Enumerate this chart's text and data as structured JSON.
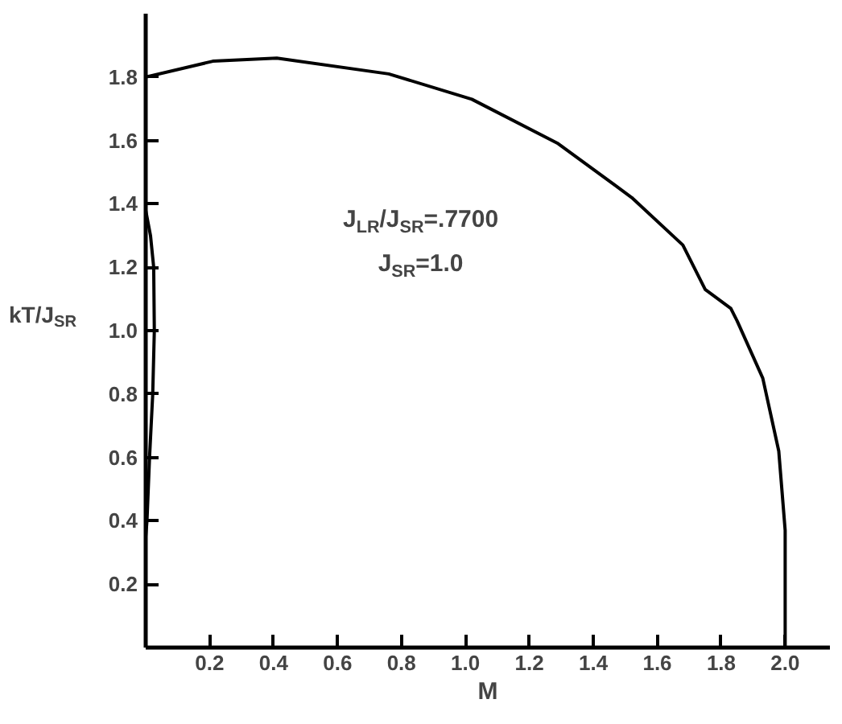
{
  "chart_data": {
    "type": "line",
    "xlabel": "M",
    "ylabel": "kT/J$_{SR}$",
    "annotations": [
      "J$_{LR}$/J$_{SR}$=.7700",
      "J$_{SR}$=1.0"
    ],
    "series": [
      {
        "color": "#000000",
        "x": [
          0,
          0.21,
          0.41,
          0.76,
          1.02,
          1.29,
          1.52,
          1.68,
          1.75,
          1.83,
          1.85,
          1.93,
          1.98,
          2.0,
          2.0
        ],
        "values": [
          1.8,
          1.85,
          1.86,
          1.81,
          1.73,
          1.59,
          1.42,
          1.27,
          1.13,
          1.07,
          1.03,
          0.85,
          0.62,
          0.37,
          0
        ]
      },
      {
        "color": "#000000",
        "x": [
          0,
          0.015,
          0.025,
          0.027,
          0.022,
          0.012,
          0.004,
          0
        ],
        "values": [
          1.38,
          1.3,
          1.2,
          1.0,
          0.8,
          0.6,
          0.4,
          0.35
        ]
      }
    ],
    "xlim": [
      0,
      2.14
    ],
    "ylim": [
      0,
      2.0
    ],
    "xticks": [
      0.2,
      0.4,
      0.6,
      0.8,
      {
        "value": 1.0,
        "label": "1.0"
      },
      1.2,
      1.4,
      1.6,
      1.8,
      {
        "value": 2.0,
        "label": "2.0"
      }
    ],
    "yticks": [
      0.2,
      0.4,
      0.6,
      0.8,
      {
        "value": 1.0,
        "label": "1.0"
      },
      1.2,
      1.4,
      1.6,
      1.8
    ],
    "grid": false,
    "marker": "none",
    "line_style": "solid"
  }
}
